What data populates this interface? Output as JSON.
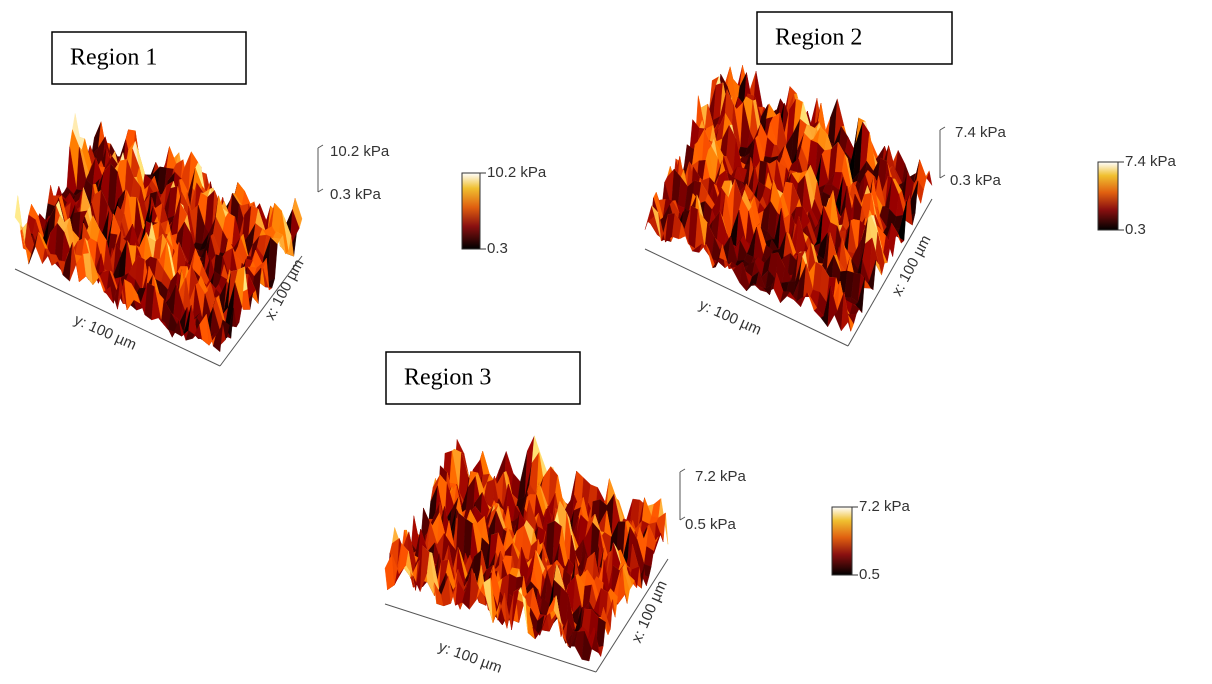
{
  "panels": [
    {
      "title": "Region 1",
      "z_max_label": "10.2 kPa",
      "z_min_label": "0.3 kPa",
      "colorbar_max": "10.2 kPa",
      "colorbar_min": "0.3",
      "y_axis_label": "y: 100 µm",
      "x_axis_label": "x: 100 µm"
    },
    {
      "title": "Region 2",
      "z_max_label": "7.4 kPa",
      "z_min_label": "0.3 kPa",
      "colorbar_max": "7.4 kPa",
      "colorbar_min": "0.3",
      "y_axis_label": "y: 100 µm",
      "x_axis_label": "x: 100 µm"
    },
    {
      "title": "Region 3",
      "z_max_label": "7.2 kPa",
      "z_min_label": "0.5 kPa",
      "colorbar_max": "7.2 kPa",
      "colorbar_min": "0.5",
      "y_axis_label": "y: 100 µm",
      "x_axis_label": "x: 100 µm"
    }
  ]
}
